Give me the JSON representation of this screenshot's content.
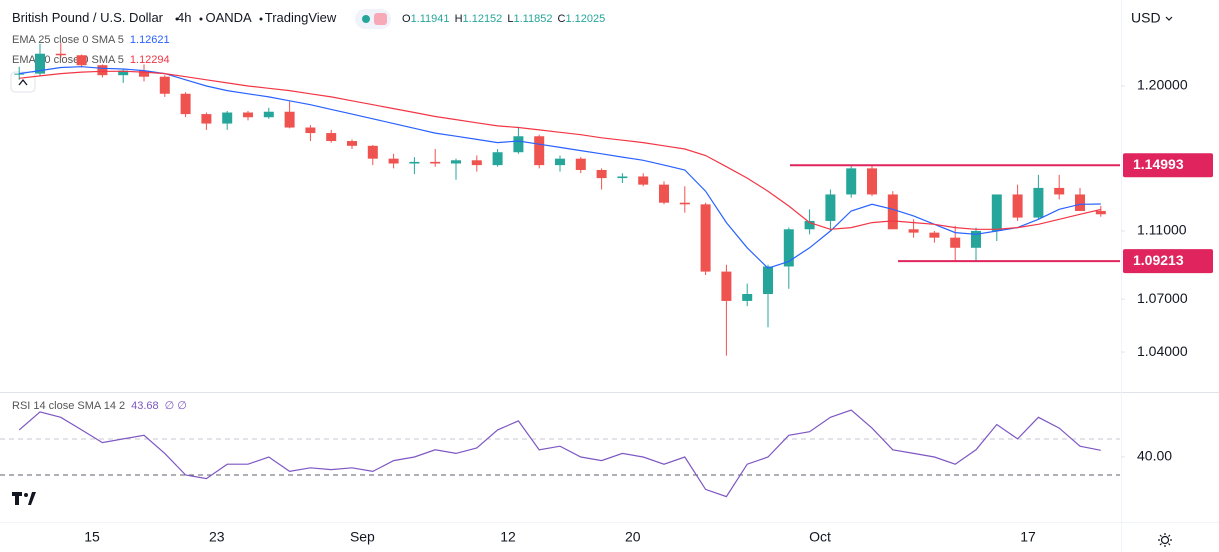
{
  "header": {
    "symbol": "British Pound / U.S. Dollar",
    "interval": "4h",
    "exchange": "OANDA",
    "source": "TradingView",
    "ohlc": [
      {
        "label": "O",
        "value": 1.11941
      },
      {
        "label": "H",
        "value": 1.12152
      },
      {
        "label": "L",
        "value": 1.11852
      },
      {
        "label": "C",
        "value": 1.12025
      }
    ]
  },
  "chart_data": [
    {
      "type": "candlestick",
      "y_axis_label": "USD",
      "categories": [
        null,
        null,
        null,
        null,
        "15",
        null,
        null,
        null,
        null,
        null,
        "23",
        null,
        null,
        null,
        null,
        null,
        null,
        "Sep",
        null,
        null,
        null,
        null,
        null,
        null,
        "12",
        null,
        null,
        null,
        null,
        null,
        "20",
        null,
        null,
        null,
        null,
        null,
        null,
        null,
        null,
        "Oct",
        null,
        null,
        null,
        null,
        null,
        null,
        null,
        null,
        null,
        "17",
        null,
        null,
        null
      ],
      "open": [
        1.2075,
        1.208,
        1.221,
        1.22,
        1.2135,
        1.207,
        1.21,
        1.206,
        1.195,
        1.182,
        1.176,
        1.183,
        1.18,
        1.1835,
        1.1735,
        1.17,
        1.165,
        1.162,
        1.154,
        1.151,
        1.152,
        1.151,
        1.153,
        1.15,
        1.158,
        1.168,
        1.15,
        1.154,
        1.147,
        1.142,
        1.143,
        1.138,
        1.127,
        1.126,
        1.086,
        1.069,
        1.073,
        1.089,
        1.111,
        1.116,
        1.132,
        1.148,
        1.132,
        1.111,
        1.109,
        1.106,
        1.1,
        1.11,
        1.132,
        1.118,
        1.136,
        1.132,
        1.122
      ],
      "high": [
        1.2125,
        1.2275,
        1.228,
        1.2205,
        1.214,
        1.211,
        1.214,
        1.207,
        1.196,
        1.183,
        1.184,
        1.184,
        1.186,
        1.19,
        1.175,
        1.172,
        1.166,
        1.1625,
        1.157,
        1.155,
        1.16,
        1.154,
        1.156,
        1.16,
        1.174,
        1.169,
        1.156,
        1.155,
        1.148,
        1.145,
        1.145,
        1.14,
        1.137,
        1.127,
        1.09,
        1.079,
        1.09,
        1.112,
        1.123,
        1.135,
        1.1495,
        1.15,
        1.134,
        1.117,
        1.11,
        1.113,
        1.112,
        1.132,
        1.138,
        1.144,
        1.144,
        1.136,
        1.125
      ],
      "low": [
        1.204,
        1.2065,
        1.2185,
        1.212,
        1.2055,
        1.202,
        1.203,
        1.193,
        1.18,
        1.172,
        1.172,
        1.178,
        1.179,
        1.173,
        1.165,
        1.164,
        1.16,
        1.15,
        1.148,
        1.1445,
        1.149,
        1.141,
        1.146,
        1.149,
        1.157,
        1.148,
        1.146,
        1.145,
        1.135,
        1.139,
        1.137,
        1.126,
        1.121,
        1.084,
        1.038,
        1.066,
        1.054,
        1.076,
        1.108,
        1.11,
        1.13,
        1.131,
        1.111,
        1.106,
        1.103,
        1.092,
        1.0925,
        1.104,
        1.116,
        1.117,
        1.129,
        1.122,
        1.1185
      ],
      "close": [
        1.208,
        1.221,
        1.22,
        1.2135,
        1.207,
        1.21,
        1.206,
        1.195,
        1.182,
        1.176,
        1.183,
        1.18,
        1.1835,
        1.1735,
        1.17,
        1.165,
        1.162,
        1.154,
        1.151,
        1.152,
        1.151,
        1.153,
        1.15,
        1.158,
        1.168,
        1.15,
        1.154,
        1.147,
        1.142,
        1.143,
        1.138,
        1.127,
        1.126,
        1.086,
        1.069,
        1.073,
        1.089,
        1.111,
        1.116,
        1.132,
        1.148,
        1.132,
        1.111,
        1.109,
        1.106,
        1.1,
        1.11,
        1.132,
        1.118,
        1.136,
        1.132,
        1.122,
        1.12
      ],
      "up_color": "#26a69a",
      "down_color": "#ef5350",
      "series": [
        {
          "name": "EMA 25 close 0 SMA 5",
          "legend_value": 1.12621,
          "color": "#2962ff",
          "values": [
            1.208,
            1.21,
            1.212,
            1.2125,
            1.2115,
            1.211,
            1.21,
            1.208,
            1.204,
            1.2,
            1.197,
            1.195,
            1.193,
            1.1905,
            1.188,
            1.185,
            1.182,
            1.179,
            1.176,
            1.173,
            1.17,
            1.168,
            1.166,
            1.164,
            1.165,
            1.163,
            1.161,
            1.159,
            1.157,
            1.155,
            1.153,
            1.15,
            1.147,
            1.134,
            1.115,
            1.1,
            1.088,
            1.092,
            1.1,
            1.11,
            1.122,
            1.126,
            1.123,
            1.119,
            1.114,
            1.109,
            1.108,
            1.11,
            1.112,
            1.117,
            1.123,
            1.126,
            1.1262
          ]
        },
        {
          "name": "EMA 50 close 0 SMA 5",
          "legend_value": 1.12294,
          "color": "#f23645",
          "values": [
            1.205,
            1.2065,
            1.208,
            1.209,
            1.2095,
            1.2095,
            1.209,
            1.208,
            1.206,
            1.204,
            1.202,
            1.2,
            1.1985,
            1.197,
            1.195,
            1.193,
            1.1905,
            1.188,
            1.1855,
            1.183,
            1.1805,
            1.1785,
            1.1765,
            1.1745,
            1.1735,
            1.172,
            1.1705,
            1.169,
            1.167,
            1.1655,
            1.164,
            1.162,
            1.16,
            1.156,
            1.149,
            1.142,
            1.134,
            1.125,
            1.115,
            1.111,
            1.112,
            1.115,
            1.116,
            1.115,
            1.114,
            1.112,
            1.111,
            1.111,
            1.112,
            1.114,
            1.117,
            1.12,
            1.1229
          ]
        }
      ],
      "levels": [
        {
          "value": 1.14993,
          "color": "#e0245e"
        },
        {
          "value": 1.09213,
          "color": "#e0245e"
        }
      ],
      "ylim": [
        1.019,
        1.2568
      ],
      "log": true,
      "yticks": [
        {
          "value": 1.04,
          "label": "1.04000"
        },
        {
          "value": 1.07,
          "label": "1.07000"
        },
        {
          "value": 1.11,
          "label": "1.11000"
        },
        {
          "value": 1.2,
          "label": "1.20000"
        }
      ]
    },
    {
      "type": "line",
      "name": "RSI 14 close SMA 14 2",
      "legend_value": 43.68,
      "legend_extra": "∅ ∅",
      "color": "#7e57c2",
      "values": [
        55,
        65,
        62,
        55,
        48,
        50,
        52,
        42,
        30,
        28,
        36,
        36,
        40,
        32,
        34,
        33,
        34,
        32,
        38,
        40,
        44,
        42,
        45,
        55,
        60,
        44,
        46,
        40,
        38,
        42,
        40,
        36,
        40,
        22,
        18,
        36,
        40,
        52,
        54,
        62,
        66,
        56,
        44,
        42,
        40,
        36,
        44,
        58,
        50,
        62,
        56,
        46,
        43.68
      ],
      "levels": [
        50,
        30
      ],
      "ylim": [
        5,
        74.4
      ],
      "yticks": [
        {
          "value": 40,
          "label": "40.00"
        }
      ]
    }
  ]
}
